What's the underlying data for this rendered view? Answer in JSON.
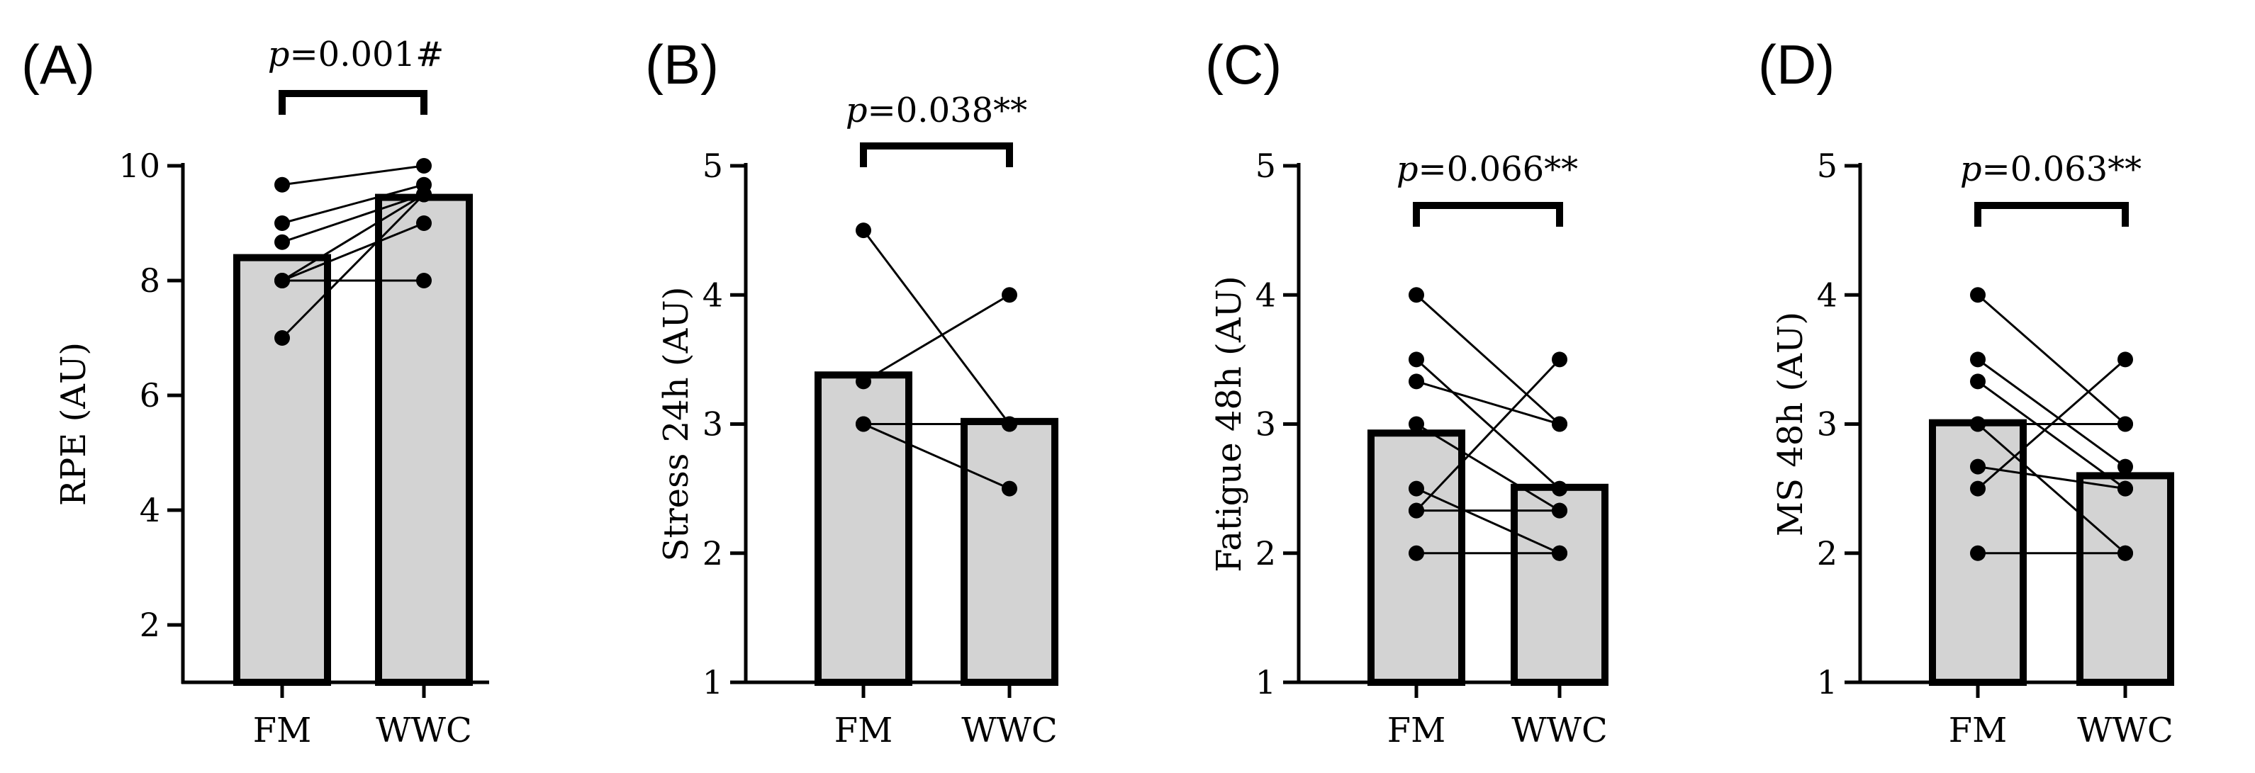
{
  "figure": {
    "background": "#ffffff",
    "bar_fill": "#d3d3d3",
    "ink": "#000000"
  },
  "chart_data": [
    {
      "type": "bar",
      "panel": "(A)",
      "ylabel": "RPE (AU)",
      "ylim": [
        1,
        10
      ],
      "yticks": [
        2,
        4,
        6,
        8,
        10
      ],
      "categories": [
        "FM",
        "WWC"
      ],
      "values": [
        8.4,
        9.45
      ],
      "p_value_label": {
        "prefix": "p",
        "text": "=0.001#"
      },
      "paired_points": [
        [
          9.67,
          10
        ],
        [
          9,
          9.67
        ],
        [
          8.67,
          9.5
        ],
        [
          8,
          9.5
        ],
        [
          8,
          9
        ],
        [
          8,
          8
        ],
        [
          7,
          9.5
        ]
      ]
    },
    {
      "type": "bar",
      "panel": "(B)",
      "ylabel": "Stress 24h (AU)",
      "ylim": [
        1,
        5
      ],
      "yticks": [
        1,
        2,
        3,
        4,
        5
      ],
      "categories": [
        "FM",
        "WWC"
      ],
      "values": [
        3.38,
        3.02
      ],
      "p_value_label": {
        "prefix": "p",
        "text": "=0.038**"
      },
      "paired_points": [
        [
          4.5,
          3
        ],
        [
          3.33,
          4
        ],
        [
          3,
          3
        ],
        [
          3,
          2.5
        ]
      ]
    },
    {
      "type": "bar",
      "panel": "(C)",
      "ylabel": "Fatigue 48h (AU)",
      "ylim": [
        1,
        5
      ],
      "yticks": [
        1,
        2,
        3,
        4,
        5
      ],
      "categories": [
        "FM",
        "WWC"
      ],
      "values": [
        2.93,
        2.51
      ],
      "p_value_label": {
        "prefix": "p",
        "text": "=0.066**"
      },
      "paired_points": [
        [
          4,
          3
        ],
        [
          3.5,
          2.5
        ],
        [
          3.33,
          3
        ],
        [
          3,
          2.33
        ],
        [
          2.5,
          2
        ],
        [
          2.33,
          3.5
        ],
        [
          2.33,
          2.33
        ],
        [
          2,
          2
        ]
      ]
    },
    {
      "type": "bar",
      "panel": "(D)",
      "ylabel": "MS 48h (AU)",
      "ylim": [
        1,
        5
      ],
      "yticks": [
        1,
        2,
        3,
        4,
        5
      ],
      "categories": [
        "FM",
        "WWC"
      ],
      "values": [
        3.01,
        2.6
      ],
      "p_value_label": {
        "prefix": "p",
        "text": "=0.063**"
      },
      "paired_points": [
        [
          4,
          3
        ],
        [
          3.5,
          2.67
        ],
        [
          3.33,
          2.5
        ],
        [
          3,
          2
        ],
        [
          2.67,
          2.5
        ],
        [
          2.5,
          3.5
        ],
        [
          3,
          3
        ],
        [
          2,
          2
        ]
      ]
    }
  ]
}
